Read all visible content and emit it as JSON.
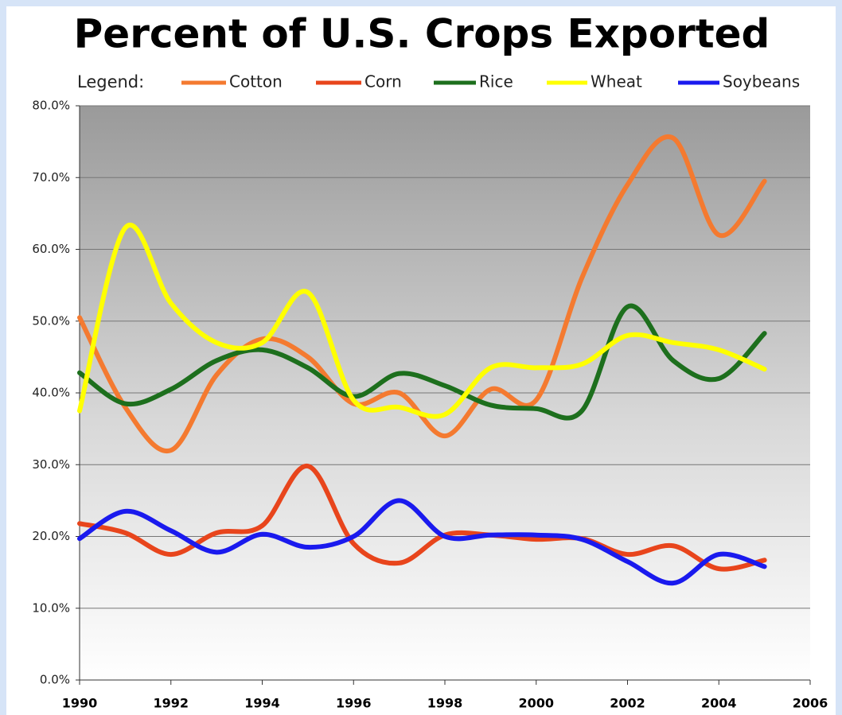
{
  "chart_data": {
    "type": "line",
    "title": "Percent of U.S. Crops Exported",
    "legend_title": "Legend:",
    "x": [
      1990,
      1991,
      1992,
      1993,
      1994,
      1995,
      1996,
      1997,
      1998,
      1999,
      2000,
      2001,
      2002,
      2003,
      2004,
      2005
    ],
    "series": [
      {
        "name": "Cotton",
        "color": "#f47a30",
        "values": [
          50.5,
          38,
          32,
          42.5,
          47.5,
          45,
          38.5,
          40,
          34,
          40.5,
          39,
          56,
          69,
          75.5,
          62,
          69.5
        ]
      },
      {
        "name": "Corn",
        "color": "#e8451c",
        "values": [
          21.8,
          20.5,
          17.5,
          20.5,
          21.5,
          29.8,
          19,
          16.3,
          20.2,
          20.2,
          19.6,
          19.7,
          17.5,
          18.7,
          15.5,
          16.7
        ]
      },
      {
        "name": "Rice",
        "color": "#1d6f1d",
        "values": [
          42.8,
          38.5,
          40.5,
          44.5,
          46,
          43.5,
          39.5,
          42.7,
          41,
          38.3,
          37.8,
          37.5,
          52,
          44.5,
          42,
          48.3
        ]
      },
      {
        "name": "Wheat",
        "color": "#ffff00",
        "values": [
          37.5,
          63,
          52.5,
          47,
          47,
          54,
          39,
          38,
          37,
          43.5,
          43.5,
          44,
          48,
          47,
          46,
          43.3
        ]
      },
      {
        "name": "Soybeans",
        "color": "#1a1aee",
        "values": [
          19.7,
          23.5,
          20.8,
          17.8,
          20.3,
          18.5,
          20,
          25,
          20,
          20.2,
          20.2,
          19.6,
          16.5,
          13.5,
          17.5,
          15.8
        ]
      }
    ],
    "xlim": [
      1990,
      2006
    ],
    "xticks": [
      1990,
      1992,
      1994,
      1996,
      1998,
      2000,
      2002,
      2004,
      2006
    ],
    "ylim": [
      0,
      80
    ],
    "yticks": [
      {
        "value": 0,
        "label": "0.0%"
      },
      {
        "value": 10,
        "label": "10.0%"
      },
      {
        "value": 20,
        "label": "20.0%"
      },
      {
        "value": 30,
        "label": "30.0%"
      },
      {
        "value": 40,
        "label": "40.0%"
      },
      {
        "value": 50,
        "label": "50.0%"
      },
      {
        "value": 60,
        "label": "60.0%"
      },
      {
        "value": 70,
        "label": "70.0%"
      },
      {
        "value": 80,
        "label": "80.0%"
      }
    ],
    "grid": true
  }
}
